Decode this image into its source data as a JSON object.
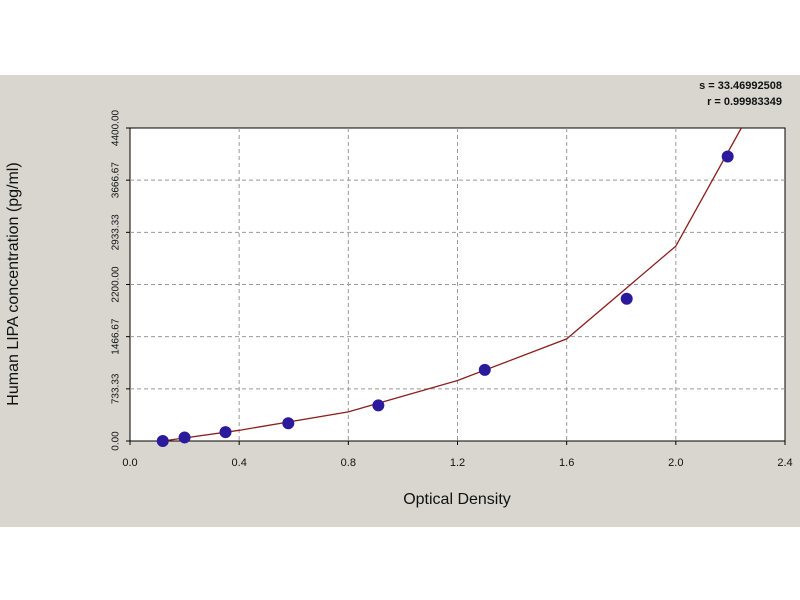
{
  "chart_data": {
    "type": "scatter",
    "annotations": [
      "s = 33.46992508",
      "r = 0.99983349"
    ],
    "xlabel": "Optical Density",
    "ylabel": "Human LIPA concentration (pg/ml)",
    "x": [
      0.12,
      0.2,
      0.35,
      0.58,
      0.91,
      1.3,
      1.82,
      2.19
    ],
    "values": [
      0,
      50,
      125,
      250,
      500,
      1000,
      2000,
      4000
    ],
    "color": "#2b1b9c",
    "fit": {
      "x": [
        0.12,
        0.4,
        0.8,
        1.2,
        1.6,
        2.0,
        2.24
      ],
      "values": [
        0,
        150,
        410,
        850,
        1435,
        2740,
        4400
      ],
      "color": "#8b1f1f"
    },
    "xlim": [
      0,
      2.4
    ],
    "xticks": [
      {
        "value": 0,
        "label": "0.0"
      },
      0.4,
      0.8,
      1.2,
      1.6,
      {
        "value": 2,
        "label": "2.0"
      },
      2.4
    ],
    "ylim": [
      0,
      4400
    ],
    "yticks": [
      {
        "value": 0,
        "label": "0.00"
      },
      733.33,
      1466.67,
      {
        "value": 2200,
        "label": "2200.00"
      },
      2933.33,
      3666.67,
      {
        "value": 4400,
        "label": "4400.00"
      }
    ],
    "grid": true
  }
}
